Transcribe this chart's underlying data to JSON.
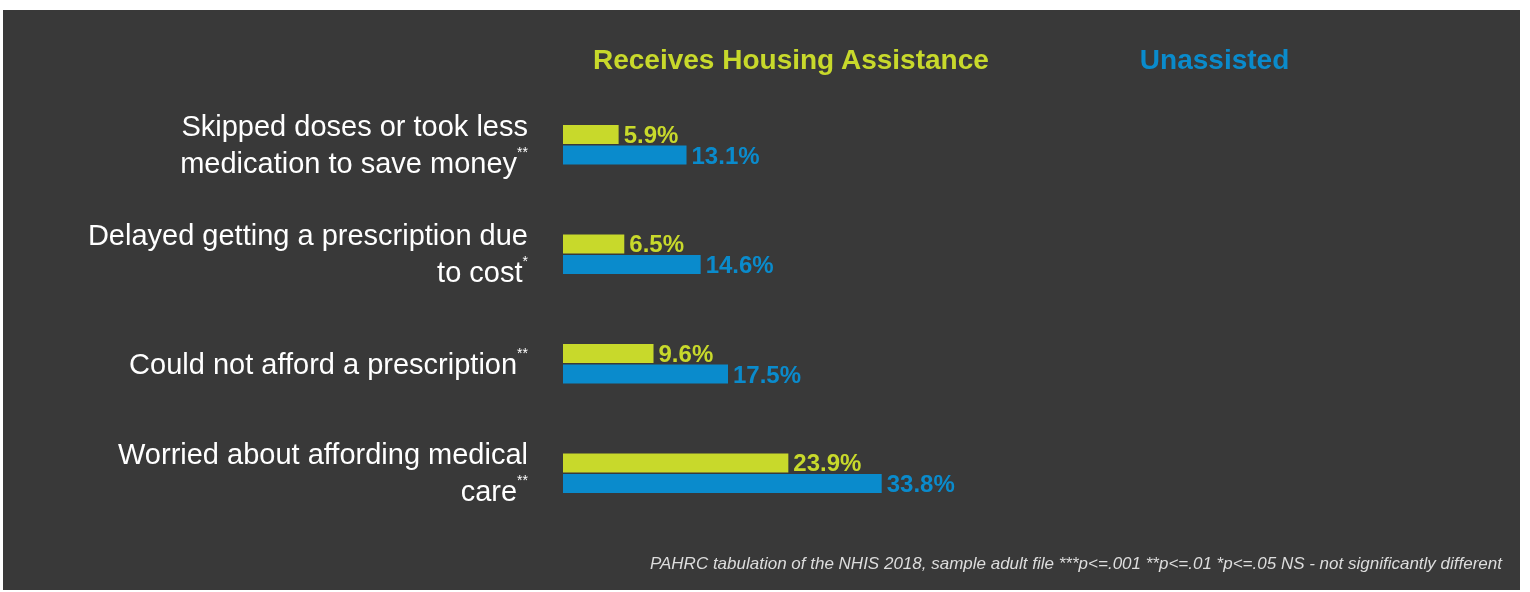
{
  "chart_data": {
    "type": "bar",
    "orientation": "horizontal",
    "categories": [
      "Skipped doses or took less medication to save money$^{**}$",
      "Delayed getting a prescription due to cost$^{*}$",
      "Could not afford a prescription$^{**}$",
      "Worried about affording medical care$^{**}$"
    ],
    "series": [
      {
        "name": "Receives Housing Assistance",
        "color": "#c8d92b",
        "values": [
          5.9,
          6.5,
          9.6,
          23.9
        ],
        "value_labels": [
          "5.9%",
          "6.5%",
          "9.6%",
          "23.9%"
        ]
      },
      {
        "name": "Unassisted",
        "color": "#0a8bcc",
        "values": [
          13.1,
          14.6,
          17.5,
          33.8
        ],
        "value_labels": [
          "13.1%",
          "14.6%",
          "17.5%",
          "33.8%"
        ]
      }
    ],
    "legend": "top",
    "annotations": [
      "PAHRC tabulation of the NHIS 2018, sample adult file ***p<=.001 **p<=.01 *p<=.05 NS - not significantly different"
    ]
  }
}
